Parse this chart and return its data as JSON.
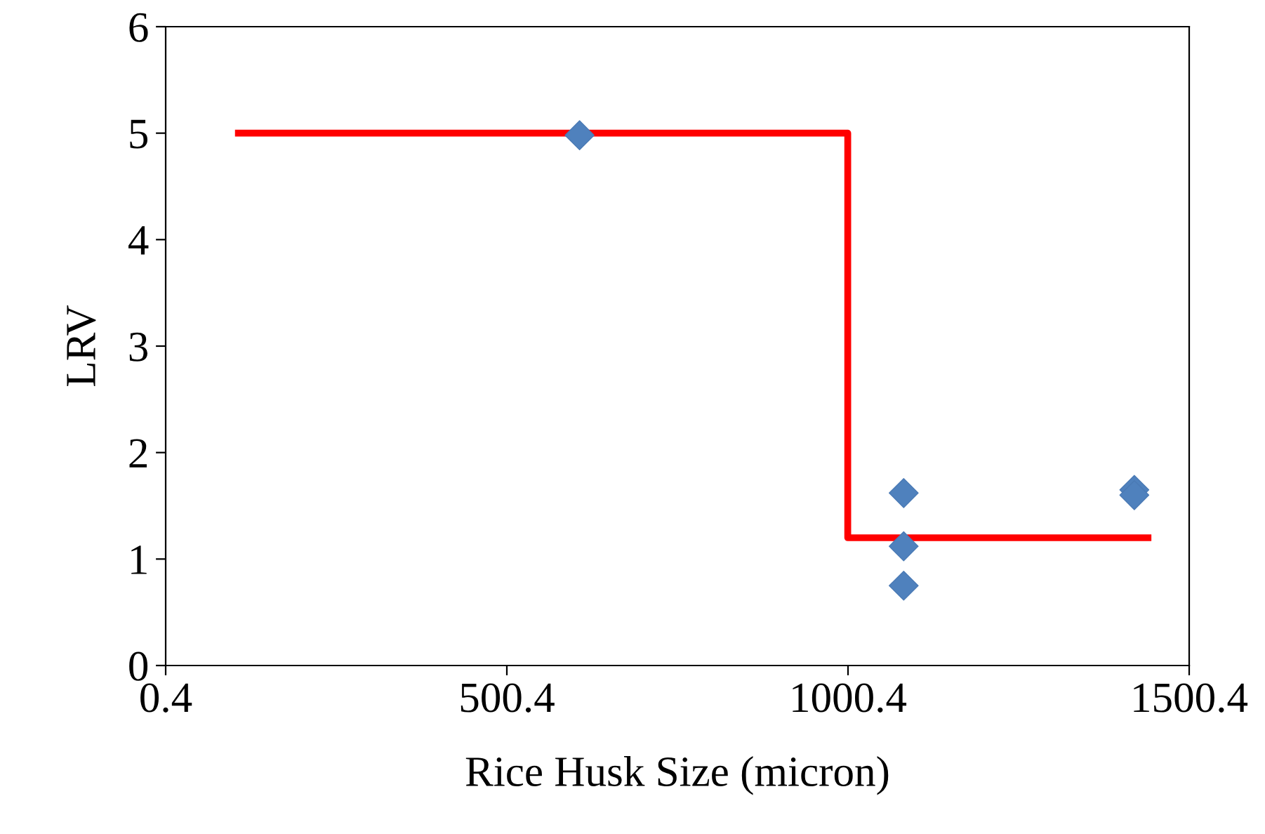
{
  "chart_data": {
    "type": "scatter",
    "xlabel": "Rice Husk Size (micron)",
    "ylabel": "LRV",
    "xlim": [
      0.4,
      1500.4
    ],
    "xticks": [
      0.4,
      500.4,
      1000.4,
      1500.4
    ],
    "ylim": [
      0,
      6
    ],
    "yticks": [
      0,
      1,
      2,
      3,
      4,
      5,
      6
    ],
    "grid": false,
    "legend": false,
    "series": [
      {
        "color": "#4f81bd",
        "marker": "diamond",
        "x": [
          607,
          1082,
          1082,
          1082,
          1420,
          1420
        ],
        "values": [
          4.98,
          1.62,
          1.12,
          0.75,
          1.65,
          1.6
        ]
      },
      {
        "type": "step",
        "color": "#ff0000",
        "marker": "none",
        "line_style": "solid",
        "x": [
          107,
          1000,
          1440
        ],
        "values": [
          5,
          1.2,
          1.2
        ]
      }
    ]
  }
}
